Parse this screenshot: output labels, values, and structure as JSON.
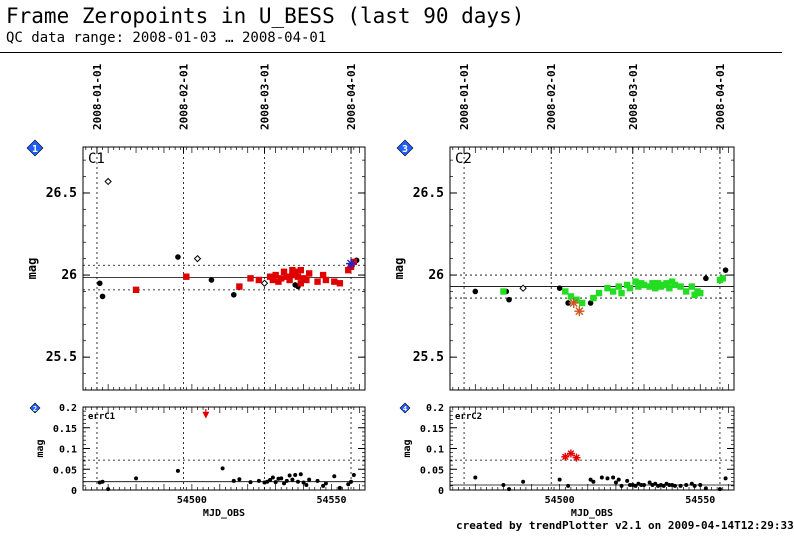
{
  "header": {
    "title": "Frame Zeropoints in U_BESS (last 90 days)",
    "subtitle": "QC data range: 2008-01-03 … 2008-04-01"
  },
  "footer": "created by trendPlotter v2.1 on 2009-04-14T12:29:33",
  "colors": {
    "black": "#000000",
    "red": "#e00000",
    "green": "#22dd22",
    "orange": "#cc5522",
    "blue": "#2222cc",
    "badge": "#1f5fff"
  },
  "chart_data": [
    {
      "type": "scatter",
      "chip": "C1",
      "badge": "1",
      "ylabel": "mag",
      "xlim": [
        54461,
        54562
      ],
      "ylim": [
        25.3,
        26.78
      ],
      "yticks": [
        25.5,
        26,
        26.5
      ],
      "date_ticks": [
        {
          "label": "2008-01-01",
          "mjd": 54466
        },
        {
          "label": "2008-02-01",
          "mjd": 54497
        },
        {
          "label": "2008-03-01",
          "mjd": 54526
        },
        {
          "label": "2008-04-01",
          "mjd": 54557
        }
      ],
      "reference_lines": {
        "solid": 25.985,
        "dotted": [
          26.06,
          25.91
        ]
      },
      "series": [
        {
          "marker": "dot",
          "color": "#000000",
          "x": [
            54467,
            54468,
            54495,
            54507,
            54515,
            54537,
            54538,
            54559
          ],
          "y": [
            25.95,
            25.87,
            26.11,
            25.97,
            25.88,
            25.94,
            25.93,
            26.09
          ]
        },
        {
          "marker": "open-diamond",
          "color": "#000000",
          "x": [
            54470,
            54502,
            54526
          ],
          "y": [
            26.57,
            26.1,
            25.95
          ]
        },
        {
          "marker": "square",
          "color": "#e00000",
          "x": [
            54480,
            54498,
            54517,
            54521,
            54524,
            54528,
            54529,
            54530,
            54531,
            54532,
            54533,
            54534,
            54535,
            54536,
            54536,
            54537,
            54538,
            54539,
            54539,
            54540,
            54541,
            54542,
            54545,
            54547,
            54548,
            54551,
            54553,
            54556,
            54557,
            54558
          ],
          "y": [
            25.91,
            25.99,
            25.93,
            25.98,
            25.97,
            25.99,
            25.97,
            26.0,
            25.96,
            25.98,
            26.02,
            25.99,
            25.97,
            26.03,
            26.0,
            26.02,
            25.99,
            26.03,
            25.95,
            25.98,
            25.97,
            26.01,
            25.96,
            26.0,
            25.97,
            25.96,
            25.95,
            26.03,
            26.05,
            26.08
          ]
        },
        {
          "marker": "asterisk",
          "color": "#2222cc",
          "x": [
            54557
          ],
          "y": [
            26.07
          ]
        }
      ]
    },
    {
      "type": "scatter",
      "chip": "errC1",
      "badge": "2",
      "ylabel": "mag",
      "xlabel": "MJD_OBS",
      "xlim": [
        54461,
        54562
      ],
      "ylim": [
        0,
        0.2
      ],
      "yticks": [
        0,
        0.05,
        0.1,
        0.15,
        0.2
      ],
      "xticks": [
        54500,
        54550
      ],
      "reference_lines": {
        "solid": 0.02,
        "dotted": [
          0.072
        ]
      },
      "series": [
        {
          "marker": "dot",
          "color": "#000000",
          "x": [
            54467,
            54468,
            54470,
            54480,
            54495,
            54511,
            54515,
            54517,
            54521,
            54524,
            54526,
            54527,
            54528,
            54529,
            54530,
            54531,
            54532,
            54533,
            54534,
            54535,
            54536,
            54537,
            54538,
            54539,
            54540,
            54541,
            54542,
            54545,
            54547,
            54548,
            54551,
            54553,
            54556,
            54557,
            54558
          ],
          "y": [
            0.018,
            0.02,
            0.002,
            0.028,
            0.046,
            0.052,
            0.022,
            0.026,
            0.019,
            0.022,
            0.018,
            0.02,
            0.024,
            0.03,
            0.019,
            0.027,
            0.028,
            0.016,
            0.022,
            0.035,
            0.025,
            0.036,
            0.02,
            0.038,
            0.018,
            0.012,
            0.025,
            0.022,
            0.01,
            0.016,
            0.033,
            0.005,
            0.014,
            0.02,
            0.036
          ]
        },
        {
          "marker": "arrow-up",
          "color": "#e00000",
          "x": [
            54505
          ],
          "y": [
            0.18
          ]
        }
      ]
    },
    {
      "type": "scatter",
      "chip": "C2",
      "badge": "3",
      "ylabel": "mag",
      "xlim": [
        54461,
        54562
      ],
      "ylim": [
        25.3,
        26.78
      ],
      "yticks": [
        25.5,
        26,
        26.5
      ],
      "date_ticks": [
        {
          "label": "2008-01-01",
          "mjd": 54466
        },
        {
          "label": "2008-02-01",
          "mjd": 54497
        },
        {
          "label": "2008-03-01",
          "mjd": 54526
        },
        {
          "label": "2008-04-01",
          "mjd": 54557
        }
      ],
      "reference_lines": {
        "solid": 25.93,
        "dotted": [
          26.0,
          25.86
        ]
      },
      "series": [
        {
          "marker": "dot",
          "color": "#000000",
          "x": [
            54470,
            54481,
            54482,
            54500,
            54503,
            54511,
            54552,
            54559
          ],
          "y": [
            25.9,
            25.9,
            25.85,
            25.92,
            25.83,
            25.83,
            25.98,
            26.03
          ]
        },
        {
          "marker": "open-diamond",
          "color": "#000000",
          "x": [
            54487
          ],
          "y": [
            25.92
          ]
        },
        {
          "marker": "square",
          "color": "#22dd22",
          "x": [
            54480,
            54502,
            54504,
            54506,
            54508,
            54512,
            54514,
            54517,
            54519,
            54521,
            54522,
            54524,
            54525,
            54527,
            54528,
            54529,
            54530,
            54532,
            54533,
            54534,
            54535,
            54536,
            54537,
            54538,
            54539,
            54540,
            54541,
            54543,
            54545,
            54547,
            54548,
            54549,
            54550,
            54557,
            54558
          ],
          "y": [
            25.9,
            25.9,
            25.87,
            25.85,
            25.83,
            25.86,
            25.89,
            25.92,
            25.9,
            25.93,
            25.89,
            25.94,
            25.92,
            25.96,
            25.93,
            25.95,
            25.94,
            25.93,
            25.95,
            25.92,
            25.95,
            25.93,
            25.94,
            25.95,
            25.92,
            25.96,
            25.94,
            25.93,
            25.9,
            25.93,
            25.88,
            25.9,
            25.89,
            25.97,
            25.98
          ]
        },
        {
          "marker": "asterisk",
          "color": "#cc5522",
          "x": [
            54505,
            54507
          ],
          "y": [
            25.83,
            25.78
          ]
        }
      ]
    },
    {
      "type": "scatter",
      "chip": "errC2",
      "badge": "4",
      "ylabel": "mag",
      "xlabel": "MJD_OBS",
      "xlim": [
        54461,
        54562
      ],
      "ylim": [
        0,
        0.2
      ],
      "yticks": [
        0,
        0.05,
        0.1,
        0.15,
        0.2
      ],
      "xticks": [
        54500,
        54550
      ],
      "reference_lines": {
        "solid": 0.012,
        "dotted": [
          0.072
        ]
      },
      "series": [
        {
          "marker": "dot",
          "color": "#000000",
          "x": [
            54470,
            54480,
            54482,
            54487,
            54500,
            54503,
            54511,
            54512,
            54515,
            54517,
            54519,
            54520,
            54521,
            54522,
            54524,
            54525,
            54526,
            54527,
            54528,
            54529,
            54530,
            54532,
            54533,
            54534,
            54535,
            54536,
            54537,
            54538,
            54539,
            54540,
            54541,
            54543,
            54545,
            54547,
            54548,
            54550,
            54552,
            54557,
            54559
          ],
          "y": [
            0.03,
            0.012,
            0.002,
            0.02,
            0.025,
            0.01,
            0.025,
            0.02,
            0.03,
            0.028,
            0.03,
            0.018,
            0.025,
            0.01,
            0.022,
            0.012,
            0.012,
            0.01,
            0.015,
            0.012,
            0.012,
            0.018,
            0.012,
            0.015,
            0.01,
            0.012,
            0.01,
            0.015,
            0.012,
            0.012,
            0.01,
            0.01,
            0.012,
            0.015,
            0.01,
            0.012,
            0.004,
            0.002,
            0.028
          ]
        },
        {
          "marker": "asterisk",
          "color": "#e00000",
          "x": [
            54502,
            54504,
            54506
          ],
          "y": [
            0.08,
            0.088,
            0.078
          ]
        }
      ]
    }
  ]
}
